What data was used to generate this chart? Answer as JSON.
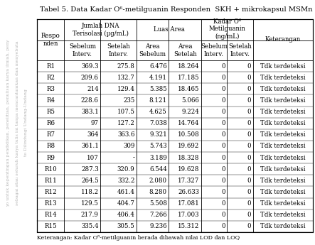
{
  "title": "Tabel 5. Data Kadar O⁶-metilguanin Responden  SKH + mikrokapsul MSMn",
  "row_header": "Respo\nnden",
  "rows": [
    [
      "R1",
      "369.3",
      "275.8",
      "6.476",
      "18.264",
      "0",
      "0",
      "Tdk terdeteksi"
    ],
    [
      "R2",
      "209.6",
      "132.7",
      "4.191",
      "17.185",
      "0",
      "0",
      "Tdk terdeteksi"
    ],
    [
      "R3",
      "214",
      "129.4",
      "5.385",
      "18.465",
      "0",
      "0",
      "Tdk terdeteksi"
    ],
    [
      "R4",
      "228.6",
      "235",
      "8.121",
      "5.066",
      "0",
      "0",
      "Tdk terdeteksi"
    ],
    [
      "R5",
      "383.1",
      "107.5",
      "4.625",
      "9.224",
      "0",
      "0",
      "Tdk terdeteksi"
    ],
    [
      "R6",
      "97",
      "127.2",
      "7.038",
      "14.764",
      "0",
      "0",
      "Tdk terdeteksi"
    ],
    [
      "R7",
      "364",
      "363.6",
      "9.321",
      "10.508",
      "0",
      "0",
      "Tdk terdeteksi"
    ],
    [
      "R8",
      "361.1",
      "309",
      "5.743",
      "19.692",
      "0",
      "0",
      "Tdk terdeteksi"
    ],
    [
      "R9",
      "107",
      "-",
      "3.189",
      "18.328",
      "0",
      "0",
      "Tdk terdeteksi"
    ],
    [
      "R10",
      "287.3",
      "320.9",
      "6.544",
      "19.628",
      "0",
      "0",
      "Tdk terdeteksi"
    ],
    [
      "R11",
      "264.5",
      "332.2",
      "2.080",
      "17.327",
      "0",
      "0",
      "Tdk terdeteksi"
    ],
    [
      "R12",
      "118.2",
      "461.4",
      "8.280",
      "26.633",
      "0",
      "0",
      "Tdk terdeteksi"
    ],
    [
      "R13",
      "129.5",
      "404.7",
      "5.508",
      "17.081",
      "0",
      "0",
      "Tdk terdeteksi"
    ],
    [
      "R14",
      "217.9",
      "406.4",
      "7.266",
      "17.003",
      "0",
      "0",
      "Tdk terdeteksi"
    ],
    [
      "R15",
      "335.4",
      "305.5",
      "9.236",
      "15.312",
      "0",
      "0",
      "Tdk terdeteksi"
    ]
  ],
  "footnote": "Keterangan: Kadar O⁶-metilguanin berada dibawah nilai LOD dan LOQ",
  "watermark_lines": [
    "yo untuk kepentingan pendidikan, penelitian, penulisan karya ilmiah, peny",
    "sebagai atau seluruh karya tulis ini tanpa mencantumkan dan menyebuta",
    "to Dilindungi Undang-Undang"
  ],
  "bg_color": "#ffffff",
  "line_color": "#000000",
  "font_size": 6.2,
  "title_font_size": 7.2
}
